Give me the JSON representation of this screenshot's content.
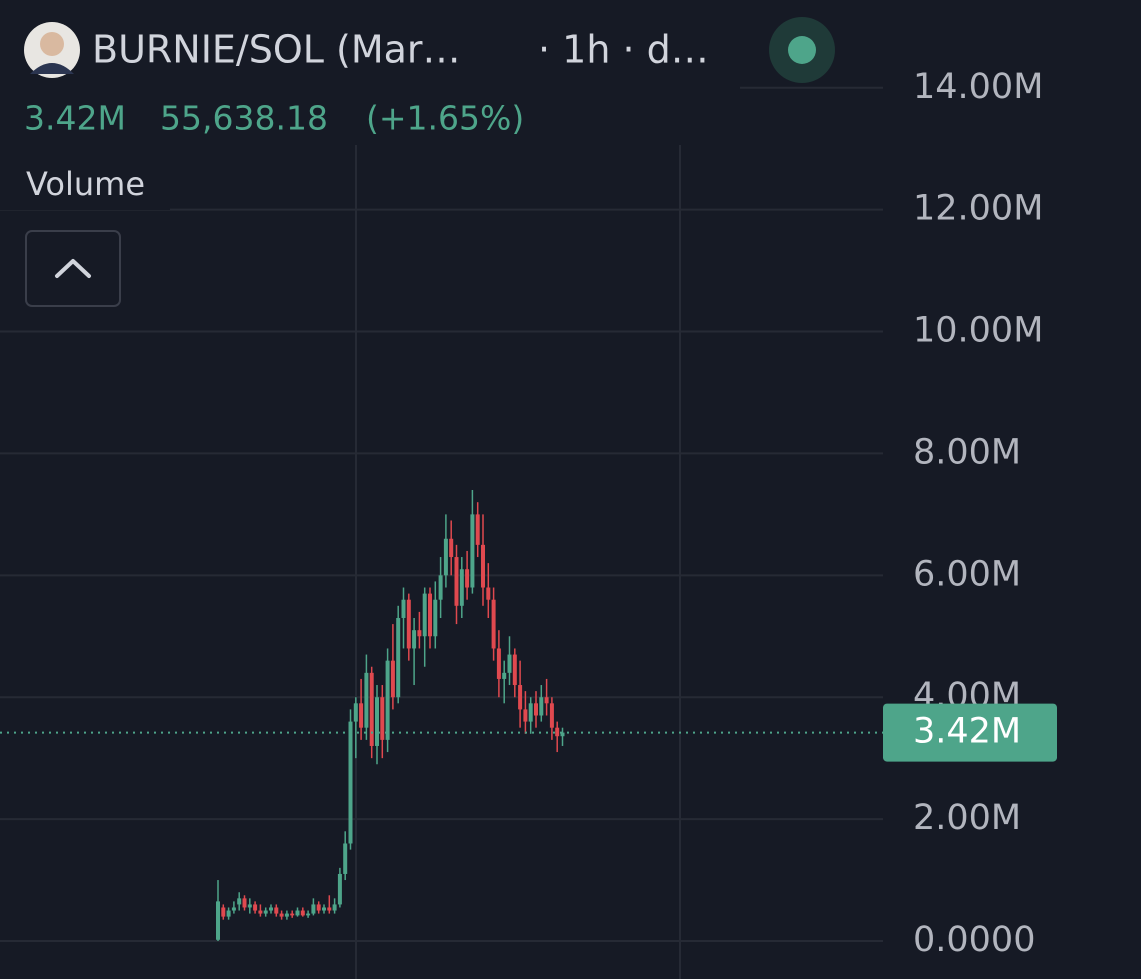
{
  "header": {
    "symbol": "BURNIE/SOL (Mar…",
    "meta": "· 1h · d…",
    "price": "3.42M",
    "change": "55,638.18",
    "change_pct": "(+1.65%)",
    "indicator": "Volume"
  },
  "chart_data": {
    "type": "candlestick",
    "up_color": "#4ea58a",
    "down_color": "#e0494f",
    "ylim": [
      0,
      15440000
    ],
    "yticks": [
      {
        "value": 0,
        "label": "0.0000"
      },
      {
        "value": 2000000,
        "label": "2.00M"
      },
      {
        "value": 4000000,
        "label": "4.00M"
      },
      {
        "value": 6000000,
        "label": "6.00M"
      },
      {
        "value": 8000000,
        "label": "8.00M"
      },
      {
        "value": 10000000,
        "label": "10.00M"
      },
      {
        "value": 12000000,
        "label": "12.00M"
      },
      {
        "value": 14000000,
        "label": "14.00M"
      }
    ],
    "grid": true,
    "last_price": {
      "value": 3420000,
      "label": "3.42M"
    },
    "open": [
      20000,
      550000,
      400000,
      500000,
      600000,
      700000,
      550000,
      600000,
      500000,
      450000,
      500000,
      550000,
      450000,
      400000,
      450000,
      420000,
      500000,
      420000,
      450000,
      600000,
      500000,
      550000,
      500000,
      600000,
      1100000,
      1600000,
      3600000,
      3900000,
      3500000,
      4400000,
      3200000,
      4000000,
      3300000,
      4600000,
      4000000,
      5300000,
      5600000,
      4800000,
      5100000,
      5000000,
      5700000,
      5000000,
      5600000,
      6000000,
      6600000,
      6300000,
      5500000,
      6100000,
      5800000,
      7000000,
      6500000,
      5800000,
      5600000,
      4800000,
      4300000,
      4400000,
      4700000,
      4200000,
      3800000,
      3600000,
      3900000,
      3700000,
      4000000,
      3900000,
      3500000,
      3360000
    ],
    "high": [
      1000000,
      600000,
      550000,
      650000,
      800000,
      750000,
      700000,
      650000,
      600000,
      550000,
      600000,
      600000,
      500000,
      500000,
      500000,
      550000,
      550000,
      500000,
      700000,
      650000,
      600000,
      750000,
      700000,
      1200000,
      1800000,
      3800000,
      4000000,
      4300000,
      4700000,
      4500000,
      4200000,
      4200000,
      4800000,
      5200000,
      5500000,
      5800000,
      5700000,
      5300000,
      5400000,
      5800000,
      5800000,
      5900000,
      6300000,
      7000000,
      6900000,
      6500000,
      6300000,
      6400000,
      7400000,
      7200000,
      7000000,
      6200000,
      5800000,
      5100000,
      4600000,
      5000000,
      4800000,
      4600000,
      4100000,
      4000000,
      4100000,
      4200000,
      4300000,
      4000000,
      3600000,
      3500000
    ],
    "low": [
      0,
      350000,
      350000,
      450000,
      500000,
      500000,
      450000,
      450000,
      400000,
      400000,
      450000,
      400000,
      350000,
      350000,
      380000,
      400000,
      400000,
      380000,
      420000,
      450000,
      450000,
      450000,
      450000,
      550000,
      1000000,
      1500000,
      3000000,
      3300000,
      3300000,
      3000000,
      2900000,
      3000000,
      3100000,
      3800000,
      3900000,
      4800000,
      4600000,
      4200000,
      4800000,
      4500000,
      4800000,
      4800000,
      5300000,
      5800000,
      6000000,
      5200000,
      5300000,
      5600000,
      5700000,
      6300000,
      5500000,
      5300000,
      4600000,
      4000000,
      3900000,
      4200000,
      4000000,
      3500000,
      3400000,
      3400000,
      3500000,
      3600000,
      3700000,
      3300000,
      3100000,
      3200000
    ],
    "close": [
      650000,
      400000,
      500000,
      550000,
      700000,
      550000,
      600000,
      500000,
      450000,
      500000,
      550000,
      450000,
      400000,
      450000,
      420000,
      500000,
      420000,
      450000,
      600000,
      500000,
      550000,
      500000,
      600000,
      1100000,
      1600000,
      3600000,
      3900000,
      3500000,
      4400000,
      3200000,
      4000000,
      3300000,
      4600000,
      4000000,
      5300000,
      5600000,
      4800000,
      5100000,
      5000000,
      5700000,
      5000000,
      5600000,
      6000000,
      6600000,
      6300000,
      5500000,
      6100000,
      5800000,
      7000000,
      6500000,
      5800000,
      5600000,
      4800000,
      4300000,
      4400000,
      4700000,
      4200000,
      3800000,
      3600000,
      3900000,
      3700000,
      4000000,
      3900000,
      3500000,
      3360000,
      3420000
    ]
  }
}
